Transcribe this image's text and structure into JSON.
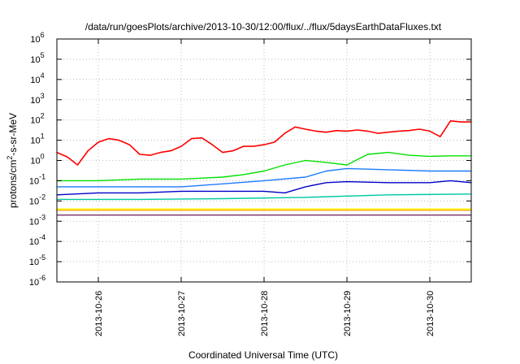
{
  "chart_data": {
    "type": "line",
    "title": "/data/run/goesPlots/archive/2013-10-30/12:00/flux/../flux/5daysEarthDataFluxes.txt",
    "xlabel": "Coordinated Universal Time (UTC)",
    "ylabel": {
      "base": "protons/cm",
      "sup": "2",
      "rest": "-s-sr-MeV"
    },
    "yscale": "log",
    "ylim": [
      1e-06,
      1000000.0
    ],
    "y_ticks": [
      {
        "value": 1e-06,
        "base": "10",
        "exp": "-6"
      },
      {
        "value": 1e-05,
        "base": "10",
        "exp": "-5"
      },
      {
        "value": 0.0001,
        "base": "10",
        "exp": "-4"
      },
      {
        "value": 0.001,
        "base": "10",
        "exp": "-3"
      },
      {
        "value": 0.01,
        "base": "10",
        "exp": "-2"
      },
      {
        "value": 0.1,
        "base": "10",
        "exp": "-1"
      },
      {
        "value": 1,
        "base": "10",
        "exp": "0"
      },
      {
        "value": 10,
        "base": "10",
        "exp": "1"
      },
      {
        "value": 100,
        "base": "10",
        "exp": "2"
      },
      {
        "value": 1000,
        "base": "10",
        "exp": "3"
      },
      {
        "value": 10000,
        "base": "10",
        "exp": "4"
      },
      {
        "value": 100000,
        "base": "10",
        "exp": "5"
      },
      {
        "value": 1000000,
        "base": "10",
        "exp": "6"
      }
    ],
    "xlim": [
      "2013-10-25 12:00",
      "2013-10-30 12:00"
    ],
    "x_ticks": [
      "2013-10-26",
      "2013-10-27",
      "2013-10-28",
      "2013-10-29",
      "2013-10-30"
    ],
    "grid": true,
    "series": [
      {
        "color": "#ff0000",
        "x": [
          "2013-10-25 12:00",
          "2013-10-25 15:00",
          "2013-10-25 18:00",
          "2013-10-25 21:00",
          "2013-10-26 00:00",
          "2013-10-26 03:00",
          "2013-10-26 06:00",
          "2013-10-26 09:00",
          "2013-10-26 12:00",
          "2013-10-26 15:00",
          "2013-10-26 18:00",
          "2013-10-26 21:00",
          "2013-10-27 00:00",
          "2013-10-27 03:00",
          "2013-10-27 06:00",
          "2013-10-27 09:00",
          "2013-10-27 12:00",
          "2013-10-27 15:00",
          "2013-10-27 18:00",
          "2013-10-27 21:00",
          "2013-10-28 00:00",
          "2013-10-28 03:00",
          "2013-10-28 06:00",
          "2013-10-28 09:00",
          "2013-10-28 12:00",
          "2013-10-28 15:00",
          "2013-10-28 18:00",
          "2013-10-28 21:00",
          "2013-10-29 00:00",
          "2013-10-29 03:00",
          "2013-10-29 06:00",
          "2013-10-29 09:00",
          "2013-10-29 12:00",
          "2013-10-29 15:00",
          "2013-10-29 18:00",
          "2013-10-29 21:00",
          "2013-10-30 00:00",
          "2013-10-30 03:00",
          "2013-10-30 06:00",
          "2013-10-30 09:00",
          "2013-10-30 12:00"
        ],
        "y": [
          2.5,
          1.5,
          0.6,
          3,
          8,
          12,
          10,
          6,
          2,
          1.8,
          2.5,
          3,
          5,
          12,
          13,
          6,
          2.5,
          3,
          5,
          5,
          6,
          8,
          22,
          45,
          35,
          28,
          25,
          30,
          28,
          32,
          28,
          22,
          25,
          28,
          30,
          35,
          28,
          15,
          90,
          80,
          80
        ]
      },
      {
        "color": "#00e000",
        "x": [
          "2013-10-25 12:00",
          "2013-10-26 00:00",
          "2013-10-26 12:00",
          "2013-10-27 00:00",
          "2013-10-27 12:00",
          "2013-10-27 18:00",
          "2013-10-28 00:00",
          "2013-10-28 06:00",
          "2013-10-28 12:00",
          "2013-10-28 18:00",
          "2013-10-29 00:00",
          "2013-10-29 06:00",
          "2013-10-29 12:00",
          "2013-10-29 18:00",
          "2013-10-30 00:00",
          "2013-10-30 06:00",
          "2013-10-30 12:00"
        ],
        "y": [
          0.1,
          0.1,
          0.12,
          0.12,
          0.15,
          0.2,
          0.3,
          0.6,
          1,
          0.8,
          0.6,
          2,
          2.5,
          1.8,
          1.6,
          1.7,
          1.7
        ]
      },
      {
        "color": "#1e7aff",
        "x": [
          "2013-10-25 12:00",
          "2013-10-26 00:00",
          "2013-10-26 12:00",
          "2013-10-27 00:00",
          "2013-10-27 12:00",
          "2013-10-28 00:00",
          "2013-10-28 12:00",
          "2013-10-28 18:00",
          "2013-10-29 00:00",
          "2013-10-29 12:00",
          "2013-10-30 00:00",
          "2013-10-30 12:00"
        ],
        "y": [
          0.05,
          0.05,
          0.05,
          0.05,
          0.07,
          0.1,
          0.15,
          0.3,
          0.4,
          0.35,
          0.3,
          0.3
        ]
      },
      {
        "color": "#0000c8",
        "x": [
          "2013-10-25 12:00",
          "2013-10-26 00:00",
          "2013-10-26 12:00",
          "2013-10-27 00:00",
          "2013-10-27 12:00",
          "2013-10-28 00:00",
          "2013-10-28 06:00",
          "2013-10-28 12:00",
          "2013-10-28 18:00",
          "2013-10-29 00:00",
          "2013-10-29 12:00",
          "2013-10-30 00:00",
          "2013-10-30 06:00",
          "2013-10-30 12:00"
        ],
        "y": [
          0.02,
          0.025,
          0.025,
          0.03,
          0.03,
          0.03,
          0.025,
          0.05,
          0.08,
          0.09,
          0.08,
          0.08,
          0.1,
          0.08
        ]
      },
      {
        "color": "#00c8a0",
        "x": [
          "2013-10-25 12:00",
          "2013-10-26 12:00",
          "2013-10-27 12:00",
          "2013-10-28 12:00",
          "2013-10-29 12:00",
          "2013-10-30 12:00"
        ],
        "y": [
          0.012,
          0.012,
          0.013,
          0.015,
          0.02,
          0.022
        ]
      },
      {
        "color": "#ffff00",
        "x": [
          "2013-10-25 12:00",
          "2013-10-26 12:00",
          "2013-10-27 12:00",
          "2013-10-28 12:00",
          "2013-10-29 12:00",
          "2013-10-30 12:00"
        ],
        "y": [
          0.004,
          0.004,
          0.004,
          0.004,
          0.004,
          0.004
        ]
      },
      {
        "color": "#ffa500",
        "x": [
          "2013-10-25 12:00",
          "2013-10-26 12:00",
          "2013-10-27 12:00",
          "2013-10-28 12:00",
          "2013-10-29 12:00",
          "2013-10-30 12:00"
        ],
        "y": [
          0.0035,
          0.0035,
          0.0035,
          0.0035,
          0.0035,
          0.0035
        ]
      },
      {
        "color": "#7b2d6b",
        "x": [
          "2013-10-25 12:00",
          "2013-10-26 12:00",
          "2013-10-27 12:00",
          "2013-10-28 12:00",
          "2013-10-29 12:00",
          "2013-10-30 12:00"
        ],
        "y": [
          0.002,
          0.002,
          0.002,
          0.002,
          0.002,
          0.002
        ]
      }
    ]
  }
}
